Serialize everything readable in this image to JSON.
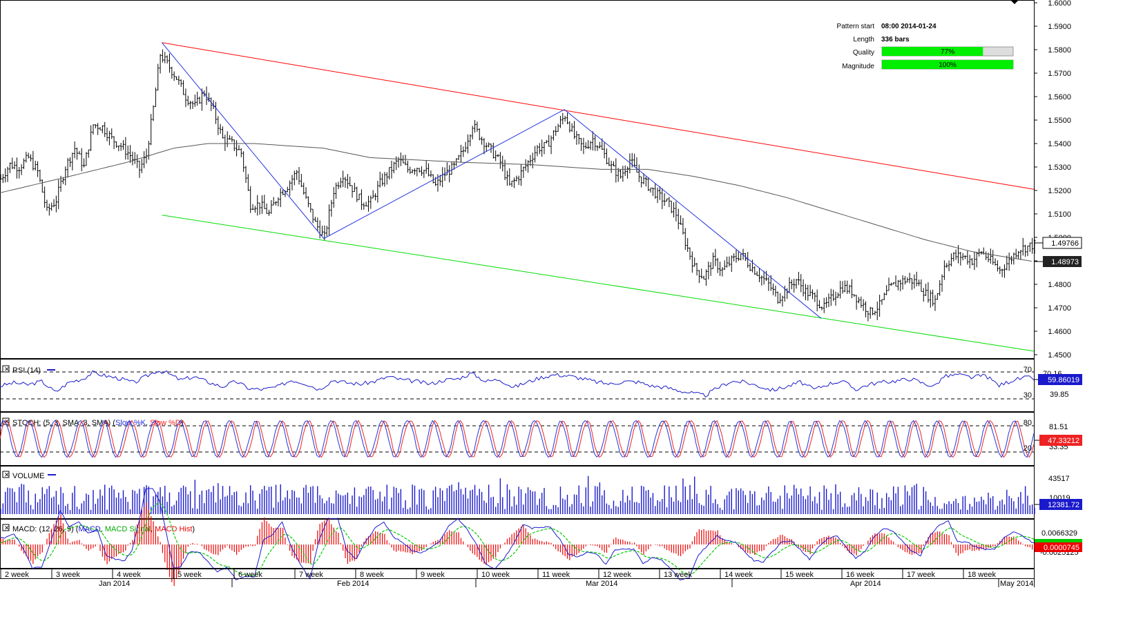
{
  "colors": {
    "bar": "#000000",
    "ma": "#555555",
    "resistance": "#ff0000",
    "support": "#00dd00",
    "pattern": "#2233dd",
    "rsi": "#1a1acc",
    "stoch_k": "#2233dd",
    "stoch_d": "#ee2222",
    "volume": "#1a1acc",
    "macd": "#1a1acc",
    "macd_signal": "#00cc00",
    "macd_hist": "#ee0000",
    "quality_bar": "#00ee00"
  },
  "info": {
    "pattern_start_label": "Pattern start",
    "pattern_start_value": "08:00 2014-01-24",
    "length_label": "Length",
    "length_value": "336 bars",
    "quality_label": "Quality",
    "quality_value": "77%",
    "quality_fraction": 0.77,
    "magnitude_label": "Magnitude",
    "magnitude_value": "100%",
    "magnitude_fraction": 1.0
  },
  "panels": {
    "rsi_label": "RSI (14)",
    "stoch_label_prefix": "STOCH: (5, 3, SMA, 3, SMA) (",
    "stoch_k_name": "Slow %K",
    "stoch_d_name": "Slow %D",
    "volume_label": "VOLUME",
    "macd_label_prefix": "MACD: (12, 26, 9) (",
    "macd_name": "MACD",
    "macd_signal_name": "MACD Signal",
    "macd_hist_name": "MACD Hist"
  },
  "chart_data": {
    "type": "ohlc",
    "price_axis": {
      "min": 1.45,
      "max": 1.6,
      "ticks": [
        "1.6000",
        "1.5900",
        "1.5800",
        "1.5700",
        "1.5600",
        "1.5500",
        "1.5400",
        "1.5300",
        "1.5200",
        "1.5100",
        "1.5000",
        "1.4900",
        "1.4800",
        "1.4700",
        "1.4600",
        "1.4500"
      ],
      "current_price": "1.49766",
      "ma_value": "1.48973"
    },
    "price_path": [
      [
        0,
        1.525
      ],
      [
        4,
        1.531
      ],
      [
        8,
        1.53
      ],
      [
        12,
        1.534
      ],
      [
        16,
        1.528
      ],
      [
        20,
        1.511
      ],
      [
        24,
        1.516
      ],
      [
        28,
        1.53
      ],
      [
        32,
        1.538
      ],
      [
        36,
        1.53
      ],
      [
        40,
        1.548
      ],
      [
        44,
        1.547
      ],
      [
        48,
        1.542
      ],
      [
        52,
        1.539
      ],
      [
        56,
        1.535
      ],
      [
        60,
        1.529
      ],
      [
        63,
        1.535
      ],
      [
        66,
        1.555
      ],
      [
        69,
        1.578
      ],
      [
        72,
        1.574
      ],
      [
        76,
        1.568
      ],
      [
        80,
        1.56
      ],
      [
        84,
        1.556
      ],
      [
        88,
        1.562
      ],
      [
        92,
        1.554
      ],
      [
        96,
        1.542
      ],
      [
        100,
        1.54
      ],
      [
        104,
        1.536
      ],
      [
        108,
        1.514
      ],
      [
        112,
        1.514
      ],
      [
        116,
        1.51
      ],
      [
        120,
        1.518
      ],
      [
        124,
        1.522
      ],
      [
        128,
        1.528
      ],
      [
        132,
        1.516
      ],
      [
        136,
        1.506
      ],
      [
        140,
        1.5
      ],
      [
        144,
        1.52
      ],
      [
        148,
        1.527
      ],
      [
        152,
        1.521
      ],
      [
        156,
        1.515
      ],
      [
        160,
        1.515
      ],
      [
        164,
        1.523
      ],
      [
        168,
        1.528
      ],
      [
        172,
        1.533
      ],
      [
        176,
        1.529
      ],
      [
        180,
        1.53
      ],
      [
        184,
        1.528
      ],
      [
        188,
        1.522
      ],
      [
        192,
        1.527
      ],
      [
        196,
        1.53
      ],
      [
        200,
        1.537
      ],
      [
        204,
        1.548
      ],
      [
        208,
        1.542
      ],
      [
        212,
        1.537
      ],
      [
        216,
        1.532
      ],
      [
        220,
        1.522
      ],
      [
        224,
        1.526
      ],
      [
        228,
        1.532
      ],
      [
        232,
        1.538
      ],
      [
        236,
        1.539
      ],
      [
        240,
        1.546
      ],
      [
        244,
        1.552
      ],
      [
        248,
        1.543
      ],
      [
        252,
        1.538
      ],
      [
        256,
        1.542
      ],
      [
        260,
        1.537
      ],
      [
        264,
        1.53
      ],
      [
        268,
        1.526
      ],
      [
        272,
        1.533
      ],
      [
        276,
        1.526
      ],
      [
        280,
        1.522
      ],
      [
        284,
        1.518
      ],
      [
        288,
        1.515
      ],
      [
        292,
        1.51
      ],
      [
        296,
        1.498
      ],
      [
        300,
        1.487
      ],
      [
        304,
        1.483
      ],
      [
        308,
        1.49
      ],
      [
        312,
        1.486
      ],
      [
        316,
        1.49
      ],
      [
        320,
        1.493
      ],
      [
        324,
        1.488
      ],
      [
        328,
        1.484
      ],
      [
        332,
        1.48
      ],
      [
        336,
        1.474
      ],
      [
        340,
        1.478
      ],
      [
        344,
        1.482
      ],
      [
        348,
        1.477
      ],
      [
        352,
        1.474
      ],
      [
        356,
        1.47
      ],
      [
        360,
        1.475
      ],
      [
        364,
        1.479
      ],
      [
        368,
        1.477
      ],
      [
        372,
        1.472
      ],
      [
        376,
        1.468
      ],
      [
        380,
        1.471
      ],
      [
        384,
        1.478
      ],
      [
        388,
        1.481
      ],
      [
        392,
        1.482
      ],
      [
        396,
        1.481
      ],
      [
        400,
        1.476
      ],
      [
        404,
        1.473
      ],
      [
        408,
        1.488
      ],
      [
        412,
        1.492
      ],
      [
        416,
        1.492
      ],
      [
        420,
        1.49
      ],
      [
        424,
        1.494
      ],
      [
        428,
        1.49
      ],
      [
        432,
        1.486
      ],
      [
        436,
        1.49
      ],
      [
        440,
        1.495
      ],
      [
        444,
        1.496
      ],
      [
        447,
        1.497
      ]
    ],
    "ma_path": [
      [
        0,
        1.519
      ],
      [
        30,
        1.526
      ],
      [
        55,
        1.532
      ],
      [
        75,
        1.538
      ],
      [
        90,
        1.54
      ],
      [
        110,
        1.54
      ],
      [
        140,
        1.538
      ],
      [
        160,
        1.534
      ],
      [
        200,
        1.532
      ],
      [
        230,
        1.531
      ],
      [
        260,
        1.529
      ],
      [
        280,
        1.529
      ],
      [
        300,
        1.526
      ],
      [
        320,
        1.522
      ],
      [
        340,
        1.517
      ],
      [
        360,
        1.511
      ],
      [
        380,
        1.505
      ],
      [
        400,
        1.499
      ],
      [
        420,
        1.494
      ],
      [
        447,
        1.4897
      ]
    ],
    "resistance_line": [
      [
        70,
        1.583
      ],
      [
        447,
        1.5205
      ]
    ],
    "support_line": [
      [
        70,
        1.5095
      ],
      [
        447,
        1.4515
      ]
    ],
    "pattern_lines": [
      [
        70,
        1.583
      ],
      [
        140,
        1.4995
      ],
      [
        244,
        1.5545
      ],
      [
        355,
        1.4655
      ]
    ],
    "x_axis": {
      "week_labels": [
        "2 week",
        "3 week",
        "4 week",
        "5 week",
        "6 week",
        "7 week",
        "8 week",
        "9 week",
        "10 week",
        "11 week",
        "12 week",
        "13 week",
        "14 week",
        "15 week",
        "16 week",
        "17 week",
        "18 week"
      ],
      "month_labels": [
        "Jan 2014",
        "Feb 2014",
        "Mar 2014",
        "Apr 2014",
        "May 2014"
      ]
    },
    "rsi": {
      "levels": [
        "70",
        "30"
      ],
      "secondary_tick": "70.16",
      "secondary_tick2": "39.85",
      "current": "59.86019",
      "path": [
        [
          0,
          49
        ],
        [
          6,
          54
        ],
        [
          12,
          51
        ],
        [
          18,
          56
        ],
        [
          24,
          40
        ],
        [
          30,
          55
        ],
        [
          36,
          60
        ],
        [
          40,
          69
        ],
        [
          46,
          64
        ],
        [
          52,
          60
        ],
        [
          58,
          54
        ],
        [
          64,
          65
        ],
        [
          68,
          72
        ],
        [
          72,
          69
        ],
        [
          78,
          58
        ],
        [
          84,
          63
        ],
        [
          90,
          55
        ],
        [
          96,
          48
        ],
        [
          102,
          56
        ],
        [
          108,
          45
        ],
        [
          114,
          44
        ],
        [
          120,
          48
        ],
        [
          126,
          58
        ],
        [
          132,
          53
        ],
        [
          138,
          44
        ],
        [
          144,
          58
        ],
        [
          150,
          54
        ],
        [
          156,
          52
        ],
        [
          162,
          56
        ],
        [
          168,
          63
        ],
        [
          174,
          58
        ],
        [
          180,
          56
        ],
        [
          186,
          52
        ],
        [
          192,
          58
        ],
        [
          198,
          60
        ],
        [
          204,
          68
        ],
        [
          210,
          56
        ],
        [
          216,
          59
        ],
        [
          222,
          47
        ],
        [
          228,
          55
        ],
        [
          234,
          62
        ],
        [
          240,
          66
        ],
        [
          246,
          64
        ],
        [
          252,
          60
        ],
        [
          258,
          55
        ],
        [
          264,
          52
        ],
        [
          270,
          56
        ],
        [
          276,
          55
        ],
        [
          282,
          49
        ],
        [
          288,
          47
        ],
        [
          294,
          42
        ],
        [
          300,
          38
        ],
        [
          305,
          35
        ],
        [
          310,
          46
        ],
        [
          316,
          56
        ],
        [
          322,
          55
        ],
        [
          328,
          49
        ],
        [
          334,
          43
        ],
        [
          340,
          48
        ],
        [
          346,
          55
        ],
        [
          352,
          44
        ],
        [
          358,
          52
        ],
        [
          364,
          57
        ],
        [
          370,
          44
        ],
        [
          376,
          52
        ],
        [
          382,
          55
        ],
        [
          388,
          57
        ],
        [
          394,
          60
        ],
        [
          400,
          52
        ],
        [
          404,
          49
        ],
        [
          408,
          63
        ],
        [
          414,
          66
        ],
        [
          420,
          62
        ],
        [
          426,
          65
        ],
        [
          432,
          50
        ],
        [
          438,
          58
        ],
        [
          444,
          62
        ],
        [
          447,
          60
        ]
      ]
    },
    "stoch": {
      "levels": [
        "80",
        "20"
      ],
      "secondary_tick": "81.51",
      "secondary_tick2": "33.35",
      "current": "47.33212"
    },
    "volume": {
      "top_tick": "43517",
      "secondary_tick": "10019",
      "current": "12381.72"
    },
    "macd": {
      "top_tick": "0.0066329",
      "current": "0.0000745",
      "bottom_tick": "-0.0025125"
    }
  }
}
